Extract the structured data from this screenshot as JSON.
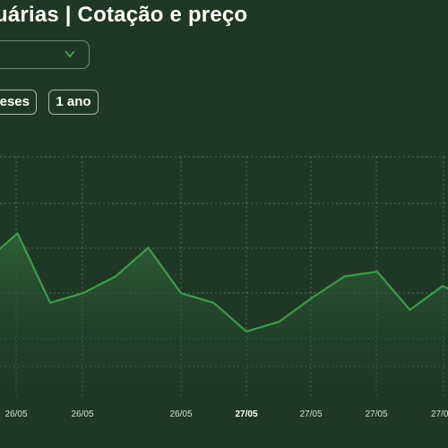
{
  "header": {
    "title": "uárias | Cotação e preço"
  },
  "period_select": {
    "icon": "chevron-down-icon",
    "accent": "#4caf50"
  },
  "range_buttons": [
    {
      "label": "eses"
    },
    {
      "label": "1 ano"
    }
  ],
  "colors": {
    "line": "#3e9a4c",
    "background": "#1f3825"
  },
  "chart_data": {
    "type": "area",
    "grid": true,
    "x_labels": [
      {
        "text": "26/05",
        "bold": false
      },
      {
        "text": "26/05",
        "bold": false
      },
      {
        "text": "26/05",
        "bold": false
      },
      {
        "text": "27/05",
        "bold": true
      },
      {
        "text": "27/05",
        "bold": false
      },
      {
        "text": "27/05",
        "bold": false
      },
      {
        "text": "27/0",
        "bold": false
      }
    ],
    "series": [
      {
        "values": [
          5.6,
          6.8,
          3.9,
          4.3,
          5.0,
          6.2,
          4.3,
          3.9,
          2.7,
          3.1,
          4.1,
          5.0,
          5.2,
          3.6,
          4.6,
          4.0
        ]
      }
    ],
    "ylim": [
      0,
      10
    ]
  }
}
